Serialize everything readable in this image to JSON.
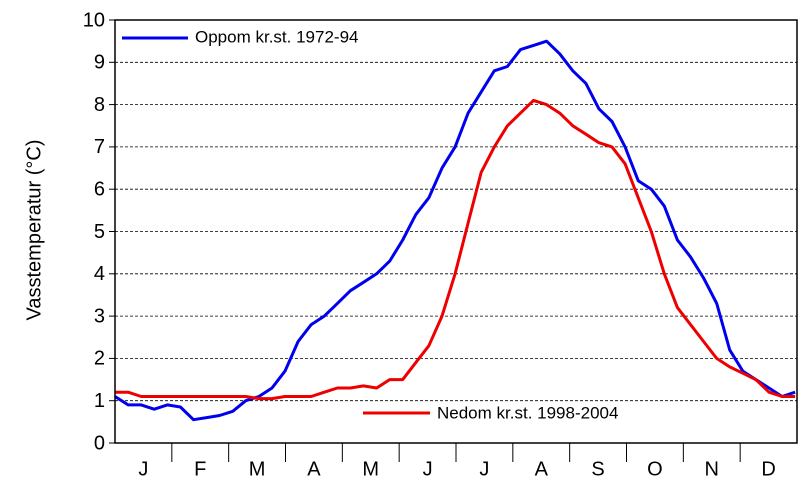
{
  "chart_data": {
    "type": "line",
    "y_label": "Vasstemperatur (°C)",
    "categories": [
      "J",
      "F",
      "M",
      "A",
      "M",
      "J",
      "J",
      "A",
      "S",
      "O",
      "N",
      "D"
    ],
    "x": [
      0,
      7,
      14,
      21,
      28,
      35,
      42,
      49,
      56,
      63,
      70,
      77,
      84,
      91,
      98,
      105,
      112,
      119,
      126,
      133,
      140,
      147,
      154,
      161,
      168,
      175,
      182,
      189,
      196,
      203,
      210,
      217,
      224,
      231,
      238,
      245,
      252,
      259,
      266,
      273,
      280,
      287,
      294,
      301,
      308,
      315,
      322,
      329,
      336,
      343,
      350,
      357,
      364
    ],
    "xlim": [
      0,
      365
    ],
    "ylim": [
      0,
      10
    ],
    "yticks": [
      0,
      1,
      2,
      3,
      4,
      5,
      6,
      7,
      8,
      9,
      10
    ],
    "grid": true,
    "series": [
      {
        "name": "Oppom kr.st. 1972-94",
        "color": "#0000ee",
        "values": [
          1.1,
          0.9,
          0.9,
          0.8,
          0.9,
          0.85,
          0.55,
          0.6,
          0.65,
          0.75,
          1.0,
          1.1,
          1.3,
          1.7,
          2.4,
          2.8,
          3.0,
          3.3,
          3.6,
          3.8,
          4.0,
          4.3,
          4.8,
          5.4,
          5.8,
          6.5,
          7.0,
          7.8,
          8.3,
          8.8,
          8.9,
          9.3,
          9.4,
          9.5,
          9.2,
          8.8,
          8.5,
          7.9,
          7.6,
          7.0,
          6.2,
          6.0,
          5.6,
          4.8,
          4.4,
          3.9,
          3.3,
          2.2,
          1.7,
          1.5,
          1.3,
          1.1,
          1.2
        ]
      },
      {
        "name": "Nedom kr.st. 1998-2004",
        "color": "#ee0000",
        "values": [
          1.2,
          1.2,
          1.1,
          1.1,
          1.1,
          1.1,
          1.1,
          1.1,
          1.1,
          1.1,
          1.1,
          1.05,
          1.05,
          1.1,
          1.1,
          1.1,
          1.2,
          1.3,
          1.3,
          1.35,
          1.3,
          1.5,
          1.5,
          1.9,
          2.3,
          3.0,
          4.0,
          5.2,
          6.4,
          7.0,
          7.5,
          7.8,
          8.1,
          8.0,
          7.8,
          7.5,
          7.3,
          7.1,
          7.0,
          6.6,
          5.8,
          5.0,
          4.0,
          3.2,
          2.8,
          2.4,
          2.0,
          1.8,
          1.65,
          1.5,
          1.2,
          1.1,
          1.1
        ]
      }
    ]
  }
}
